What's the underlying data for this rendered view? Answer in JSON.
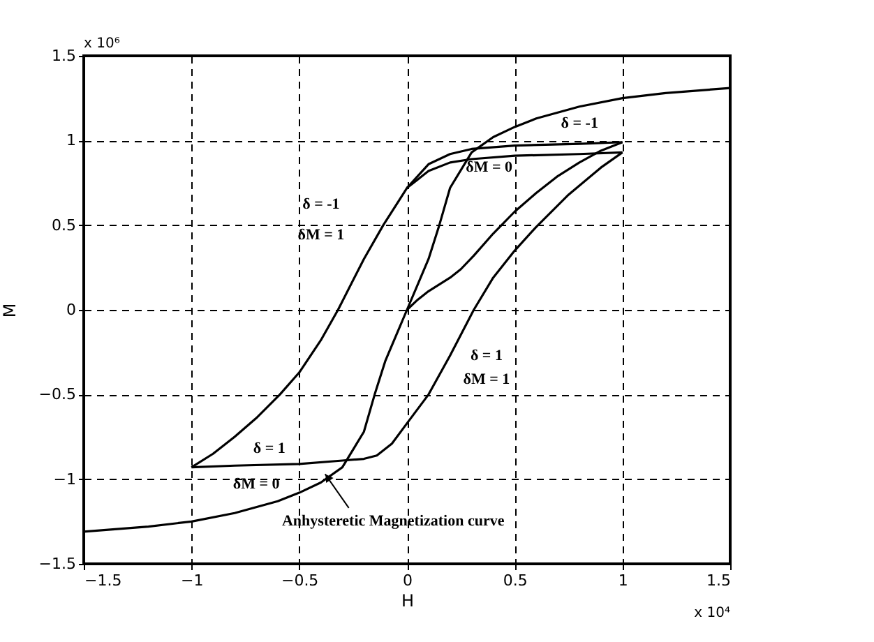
{
  "chart_data": {
    "type": "line",
    "xlabel": "H",
    "ylabel": "M",
    "xlim": [
      -1.5,
      1.5
    ],
    "ylim": [
      -1.5,
      1.5
    ],
    "xticks": [
      -1.5,
      -1,
      -0.5,
      0,
      0.5,
      1,
      1.5
    ],
    "yticks": [
      -1.5,
      -1,
      -0.5,
      0,
      0.5,
      1,
      1.5
    ],
    "grid": true,
    "line_style": "solid",
    "marker": "none",
    "series": [
      {
        "color": "#000000",
        "x": [
          -1.5,
          -1.2,
          -1,
          -0.8,
          -0.6,
          -0.5,
          -0.4,
          -0.3,
          -0.2,
          -0.15,
          -0.1,
          -0.05,
          0,
          0.05,
          0.1,
          0.15,
          0.2,
          0.3,
          0.4,
          0.5,
          0.6,
          0.8,
          1,
          1.2,
          1.5
        ],
        "values": [
          -1.31,
          -1.28,
          -1.25,
          -1.2,
          -1.13,
          -1.08,
          -1.02,
          -0.93,
          -0.72,
          -0.5,
          -0.3,
          -0.15,
          0,
          0.15,
          0.3,
          0.5,
          0.72,
          0.93,
          1.02,
          1.08,
          1.13,
          1.2,
          1.25,
          1.28,
          1.31
        ]
      },
      {
        "color": "#000000",
        "x": [
          1,
          0.8,
          0.5,
          0.3,
          0.2,
          0.1,
          0,
          -0.05,
          -0.11,
          -0.2,
          -0.32,
          -0.4,
          -0.5,
          -0.59,
          -0.7,
          -0.8,
          -0.9,
          -1
        ],
        "values": [
          0.99,
          0.98,
          0.97,
          0.95,
          0.92,
          0.86,
          0.72,
          0.62,
          0.5,
          0.3,
          0,
          -0.18,
          -0.37,
          -0.5,
          -0.64,
          -0.75,
          -0.85,
          -0.93
        ]
      },
      {
        "color": "#000000",
        "x": [
          1,
          0.8,
          0.5,
          0.3,
          0.2,
          0.1,
          0.05,
          0
        ],
        "values": [
          0.93,
          0.92,
          0.91,
          0.89,
          0.87,
          0.82,
          0.77,
          0.72
        ]
      },
      {
        "color": "#000000",
        "x": [
          -1,
          -0.8,
          -0.5,
          -0.3,
          -0.2,
          -0.14,
          -0.07,
          0,
          0.1,
          0.2,
          0.31,
          0.4,
          0.5,
          0.6,
          0.75,
          0.9,
          1
        ],
        "values": [
          -0.93,
          -0.92,
          -0.91,
          -0.89,
          -0.88,
          -0.86,
          -0.79,
          -0.67,
          -0.5,
          -0.27,
          0,
          0.19,
          0.35,
          0.49,
          0.68,
          0.84,
          0.93
        ]
      },
      {
        "color": "#000000",
        "x": [
          0,
          0.05,
          0.1,
          0.2,
          0.25,
          0.31,
          0.4,
          0.5,
          0.6,
          0.7,
          0.8,
          0.9,
          1
        ],
        "values": [
          0,
          0.06,
          0.11,
          0.19,
          0.24,
          0.32,
          0.45,
          0.58,
          0.69,
          0.79,
          0.87,
          0.94,
          0.99
        ]
      }
    ],
    "annotations": [
      "δ = -1",
      "δM = 1",
      "δ = -1",
      "δM = 0",
      "δ = 1",
      "δM = 1",
      "δ = 1",
      "δM = 0",
      {
        "text": "Anhysteretic Magnetization curve",
        "x": -0.38,
        "y": -0.97
      },
      "x 10⁶",
      "x 10⁴"
    ]
  }
}
